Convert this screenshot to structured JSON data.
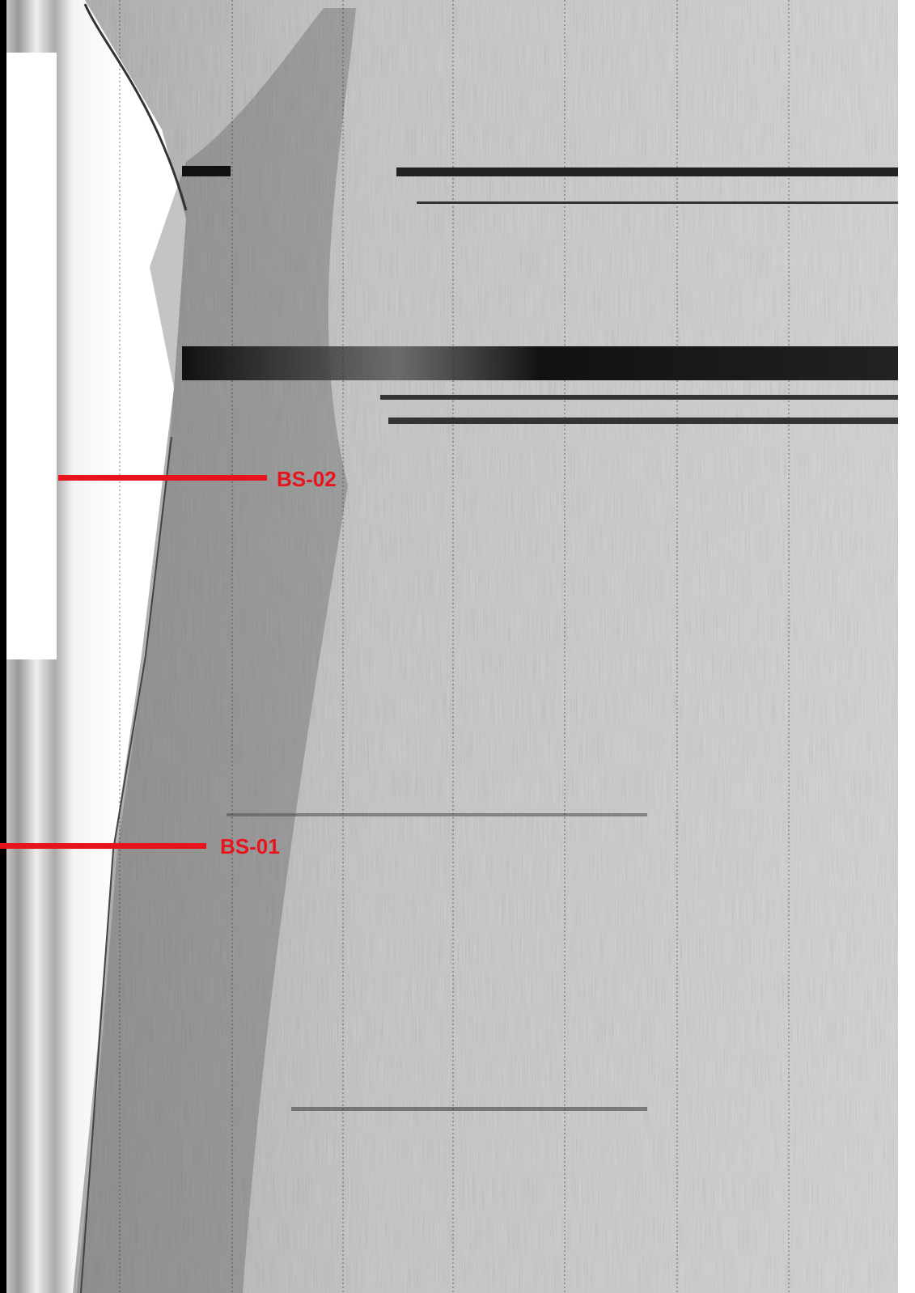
{
  "markers": [
    {
      "label": "BS-02"
    },
    {
      "label": "BS-01"
    }
  ]
}
